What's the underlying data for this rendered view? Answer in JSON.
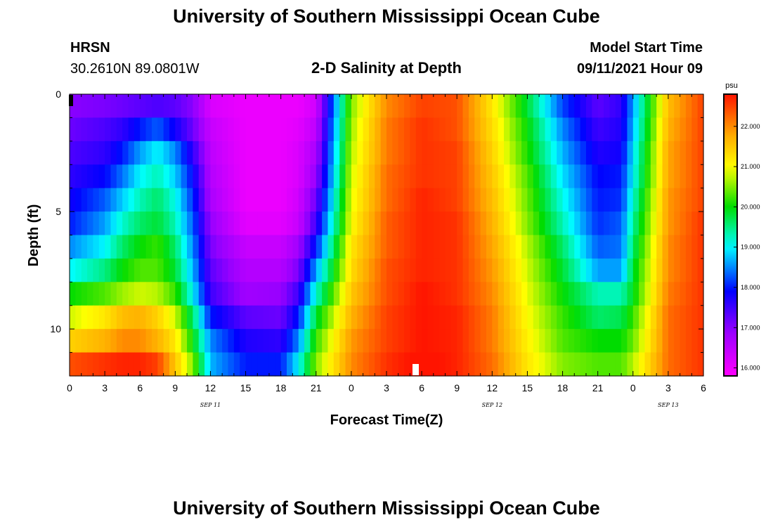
{
  "header": {
    "title": "University of Southern Mississippi Ocean Cube",
    "station": "HRSN",
    "coords": "30.2610N  89.0801W",
    "plot_title": "2-D Salinity at Depth",
    "model_label": "Model Start Time",
    "model_time": "09/11/2021 Hour 09"
  },
  "footer": {
    "title": "University of Southern Mississippi Ocean Cube"
  },
  "chart_data": {
    "type": "heatmap",
    "title": "2-D Salinity at Depth",
    "xlabel": "Forecast Time(Z)",
    "ylabel": "Depth (ft)",
    "x_hours": [
      0,
      54
    ],
    "y_range_ft": [
      0,
      12
    ],
    "x_tick_labels": [
      "0",
      "3",
      "6",
      "9",
      "12",
      "15",
      "18",
      "21",
      "0",
      "3",
      "6",
      "9",
      "12",
      "15",
      "18",
      "21",
      "0",
      "3",
      "6"
    ],
    "y_tick_labels": [
      "0",
      "5",
      "10"
    ],
    "y_tick_values": [
      0,
      5,
      10
    ],
    "date_labels": [
      {
        "label": "SEP 11",
        "hour": 12
      },
      {
        "label": "SEP 12",
        "hour": 36
      },
      {
        "label": "SEP 13",
        "hour": 51
      }
    ],
    "colorbar": {
      "unit": "psu",
      "min": 15.8,
      "max": 22.8,
      "tick_labels": [
        "22.000",
        "21.000",
        "20.000",
        "19.000",
        "18.000",
        "17.000",
        "16.000"
      ],
      "tick_values": [
        22,
        21,
        20,
        19,
        18,
        17,
        16
      ]
    },
    "depth_levels_ft": [
      0.5,
      1.5,
      2.5,
      3.5,
      4.5,
      5.5,
      6.5,
      7.5,
      8.5,
      9.5,
      10.5,
      11.5
    ],
    "time_anchors_hr": [
      0,
      3,
      4.5,
      6,
      7.5,
      9,
      10.5,
      12,
      15,
      18,
      19.5,
      21,
      24,
      27,
      30,
      33,
      36,
      39,
      42,
      45,
      47,
      48,
      51,
      54
    ],
    "salinity_psu": [
      [
        17.0,
        17.1,
        17.2,
        17.3,
        17.4,
        17.3,
        17.0,
        16.2,
        16.0,
        16.0,
        16.0,
        16.3,
        20.5,
        22.0,
        22.5,
        22.4,
        21.2,
        19.8,
        18.2,
        17.3,
        17.6,
        18.6,
        21.6,
        22.5
      ],
      [
        17.2,
        17.4,
        17.6,
        18.0,
        18.3,
        17.8,
        17.2,
        16.4,
        16.0,
        16.0,
        16.1,
        16.5,
        20.6,
        22.1,
        22.6,
        22.4,
        21.3,
        20.0,
        18.5,
        17.5,
        17.7,
        18.7,
        21.7,
        22.5
      ],
      [
        17.4,
        17.6,
        18.0,
        18.6,
        19.0,
        18.5,
        17.6,
        16.5,
        16.0,
        16.0,
        16.2,
        16.7,
        20.7,
        22.1,
        22.6,
        22.5,
        21.4,
        20.1,
        18.7,
        17.7,
        17.8,
        18.9,
        21.8,
        22.5
      ],
      [
        17.6,
        17.9,
        18.4,
        19.0,
        19.3,
        18.8,
        17.9,
        16.6,
        16.0,
        16.0,
        16.2,
        16.9,
        20.8,
        22.2,
        22.6,
        22.5,
        21.5,
        20.3,
        18.9,
        17.9,
        18.0,
        19.0,
        21.8,
        22.5
      ],
      [
        17.8,
        18.3,
        18.8,
        19.3,
        19.6,
        19.1,
        18.1,
        16.7,
        16.0,
        16.0,
        16.3,
        17.2,
        20.9,
        22.2,
        22.7,
        22.5,
        21.6,
        20.4,
        19.1,
        18.0,
        18.1,
        19.2,
        21.9,
        22.5
      ],
      [
        18.0,
        18.6,
        19.2,
        19.6,
        19.8,
        19.3,
        18.3,
        16.9,
        16.1,
        16.1,
        16.4,
        17.5,
        21.0,
        22.3,
        22.7,
        22.6,
        21.7,
        20.5,
        19.3,
        18.1,
        18.3,
        19.4,
        21.9,
        22.6
      ],
      [
        18.5,
        19.0,
        19.6,
        20.0,
        20.2,
        19.6,
        18.5,
        17.1,
        16.4,
        16.4,
        16.8,
        18.0,
        21.2,
        22.3,
        22.7,
        22.6,
        21.8,
        20.7,
        19.6,
        18.3,
        18.4,
        19.6,
        22.0,
        22.6
      ],
      [
        19.0,
        19.5,
        20.0,
        20.3,
        20.3,
        19.8,
        18.7,
        17.3,
        16.6,
        16.6,
        17.1,
        18.6,
        21.3,
        22.4,
        22.7,
        22.6,
        21.9,
        20.8,
        19.8,
        18.6,
        18.6,
        19.8,
        22.0,
        22.6
      ],
      [
        20.0,
        20.3,
        20.6,
        20.8,
        20.7,
        20.2,
        19.0,
        17.5,
        16.8,
        16.9,
        17.5,
        19.2,
        21.5,
        22.4,
        22.8,
        22.6,
        22.0,
        20.9,
        20.0,
        19.3,
        19.3,
        19.9,
        22.1,
        22.6
      ],
      [
        20.8,
        21.2,
        21.6,
        21.7,
        21.4,
        20.8,
        19.6,
        18.0,
        17.3,
        17.2,
        18.0,
        19.8,
        21.7,
        22.5,
        22.8,
        22.7,
        22.1,
        21.0,
        20.2,
        19.6,
        19.7,
        20.2,
        22.2,
        22.6
      ],
      [
        21.4,
        21.7,
        22.0,
        22.0,
        21.7,
        21.2,
        20.0,
        18.5,
        17.7,
        17.6,
        18.5,
        20.2,
        21.9,
        22.5,
        22.8,
        22.7,
        22.1,
        21.1,
        20.3,
        20.0,
        20.0,
        20.4,
        22.2,
        22.6
      ],
      [
        22.4,
        22.6,
        22.7,
        22.7,
        22.5,
        21.5,
        20.5,
        18.7,
        18.0,
        18.0,
        19.0,
        20.5,
        22.0,
        22.6,
        22.9,
        22.7,
        22.2,
        21.2,
        20.5,
        20.3,
        20.3,
        20.7,
        22.2,
        22.6
      ]
    ]
  }
}
